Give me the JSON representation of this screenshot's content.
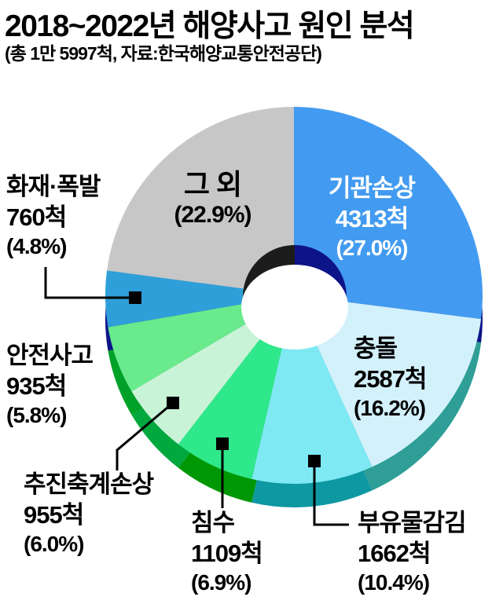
{
  "header": {
    "title": "2018~2022년 해양사고 원인 분석",
    "subtitle": "(총 1만 5997척, 자료:한국해양교통안전공단)"
  },
  "chart_data": {
    "type": "pie",
    "style": "3d-donut",
    "title": "2018~2022년 해양사고 원인 분석",
    "total_ships_label": "총 1만 5997척",
    "total_ships": 15997,
    "source": "한국해양교통안전공단",
    "start_angle_deg": 0,
    "direction": "clockwise-from-top",
    "legend": "none",
    "segments": [
      {
        "key": "engine-damage",
        "label": "기관손상",
        "count": 4313,
        "count_label": "4313척",
        "pct": 27.0,
        "pct_label": "(27.0%)",
        "color": "#429BF0",
        "rim_color": "#0D1488",
        "text_color": "#ffffff"
      },
      {
        "key": "collision",
        "label": "충돌",
        "count": 2587,
        "count_label": "2587척",
        "pct": 16.2,
        "pct_label": "(16.2%)",
        "color": "#D3F1FB",
        "rim_color": "#2E9E96",
        "text_color": "#000000"
      },
      {
        "key": "floating-object",
        "label": "부유물감김",
        "count": 1662,
        "count_label": "1662척",
        "pct": 10.4,
        "pct_label": "(10.4%)",
        "color": "#7EE9F3",
        "rim_color": "#0E98A2",
        "text_color": "#000000"
      },
      {
        "key": "flooding",
        "label": "침수",
        "count": 1109,
        "count_label": "1109척",
        "pct": 6.9,
        "pct_label": "(6.9%)",
        "color": "#2EE88B",
        "rim_color": "#009704",
        "text_color": "#000000"
      },
      {
        "key": "propulsion-shaft-damage",
        "label": "추진축계손상",
        "count": 955,
        "count_label": "955척",
        "pct": 6.0,
        "pct_label": "(6.0%)",
        "color": "#C9F3D7",
        "rim_color": "#00A83E",
        "text_color": "#000000"
      },
      {
        "key": "safety-accident",
        "label": "안전사고",
        "count": 935,
        "count_label": "935척",
        "pct": 5.8,
        "pct_label": "(5.8%)",
        "color": "#68EA8D",
        "rim_color": "#00A128",
        "text_color": "#000000"
      },
      {
        "key": "fire-explosion",
        "label": "화재·폭발",
        "count": 760,
        "count_label": "760척",
        "pct": 4.8,
        "pct_label": "(4.8%)",
        "color": "#2F9FD9",
        "rim_color": "#0D1488",
        "text_color": "#000000"
      },
      {
        "key": "others",
        "label": "그 외",
        "count": null,
        "count_label": "",
        "pct": 22.9,
        "pct_label": "(22.9%)",
        "color": "#C7C7C7",
        "rim_color": "#9A9A9A",
        "text_color": "#000000"
      }
    ],
    "donut_hole": {
      "ring_left_color": "#1C1C1C",
      "ring_right_color": "#0D1488",
      "hole_color": "#ffffff"
    },
    "callout_style": {
      "line_color": "#000000",
      "marker_color": "#000000"
    }
  }
}
